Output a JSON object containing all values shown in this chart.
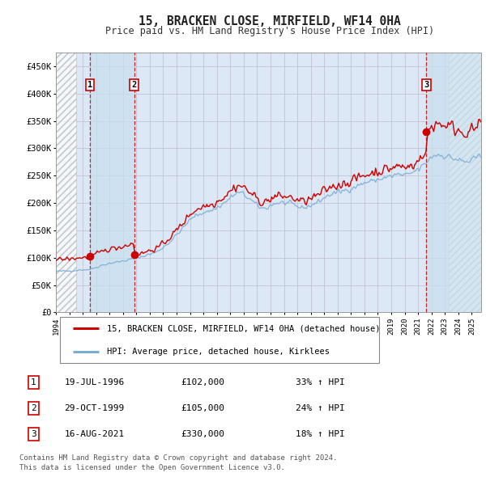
{
  "title": "15, BRACKEN CLOSE, MIRFIELD, WF14 0HA",
  "subtitle": "Price paid vs. HM Land Registry's House Price Index (HPI)",
  "red_label": "15, BRACKEN CLOSE, MIRFIELD, WF14 0HA (detached house)",
  "blue_label": "HPI: Average price, detached house, Kirklees",
  "footnote1": "Contains HM Land Registry data © Crown copyright and database right 2024.",
  "footnote2": "This data is licensed under the Open Government Licence v3.0.",
  "sales": [
    {
      "num": 1,
      "date_label": "19-JUL-1996",
      "date_x": 1996.54,
      "price": 102000,
      "hpi_pct": "33% ↑ HPI"
    },
    {
      "num": 2,
      "date_label": "29-OCT-1999",
      "date_x": 1999.83,
      "price": 105000,
      "hpi_pct": "24% ↑ HPI"
    },
    {
      "num": 3,
      "date_label": "16-AUG-2021",
      "date_x": 2021.62,
      "price": 330000,
      "hpi_pct": "18% ↑ HPI"
    }
  ],
  "sale_prices": [
    102000,
    105000,
    330000
  ],
  "ylim": [
    0,
    475000
  ],
  "xlim_start": 1994.0,
  "xlim_end": 2025.7,
  "hatch_left_end": 1995.5,
  "hatch_right_start": 2023.3,
  "shade_band1_start": 1996.54,
  "shade_band1_end": 1999.83,
  "shade_band2_start": 2021.62,
  "shade_band2_end": 2023.3,
  "background_color": "#ffffff",
  "plot_bg": "#dce8f5",
  "hatch_color": "#aaaaaa",
  "red_color": "#cc0000",
  "blue_color": "#7aadd4",
  "grid_color": "#bbbbcc",
  "shade_color": "#c8dff0"
}
